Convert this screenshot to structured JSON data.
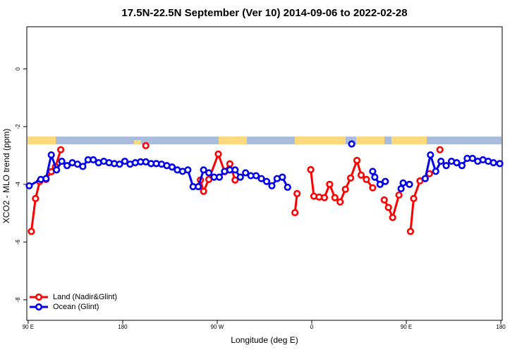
{
  "chart_data": {
    "type": "line",
    "title": "17.5N-22.5N September (Ver 10)   2014-09-06 to 2022-02-28",
    "x_label": "Longitude (deg E)",
    "y_label": "XCO2 - MLO trend (ppm)",
    "xlim": [
      88.7,
      541.3
    ],
    "ylim": [
      -8.71,
      1.46
    ],
    "xticks": [
      {
        "value": 90,
        "label": "90 E"
      },
      {
        "value": 180,
        "label": "180"
      },
      {
        "value": 270,
        "label": "90 W"
      },
      {
        "value": 360,
        "label": "0"
      },
      {
        "value": 450,
        "label": "90 E"
      },
      {
        "value": 540,
        "label": "180"
      }
    ],
    "yticks": [
      0,
      -2,
      -4,
      -6,
      -8
    ],
    "legend": "bottom-left",
    "series": [
      {
        "name": "Land (Nadir&Glint)",
        "color": "#ff0000",
        "x": [
          93,
          97,
          101,
          107,
          112,
          116,
          121,
          150,
          202,
          230,
          254,
          257,
          262,
          271,
          277,
          282,
          287,
          320,
          344,
          346,
          352,
          359,
          362,
          367,
          372,
          377,
          382,
          387,
          392,
          397,
          403,
          407,
          412,
          418,
          424,
          429,
          433,
          437,
          443,
          448,
          454,
          457,
          463,
          472,
          477,
          482
        ],
        "values": [
          -5.63,
          -4.49,
          -3.9,
          -3.83,
          -3.56,
          -3.39,
          -2.8,
          null,
          -2.66,
          null,
          -3.85,
          -4.24,
          -3.83,
          -2.95,
          -3.56,
          -3.29,
          -3.85,
          null,
          -4.98,
          -4.32,
          null,
          -3.49,
          -4.41,
          -4.44,
          -4.46,
          -4.0,
          -4.46,
          -4.61,
          -4.17,
          -3.78,
          -3.17,
          -3.68,
          -3.83,
          -4.12,
          null,
          -4.54,
          -4.8,
          -5.15,
          -4.37,
          null,
          -5.63,
          -4.49,
          -3.88,
          -3.63,
          null,
          -2.8
        ]
      },
      {
        "name": "Ocean (Glint)",
        "color": "#0000ee",
        "x": [
          91,
          102,
          107,
          112,
          117,
          122,
          127,
          132,
          137,
          142,
          147,
          152,
          157,
          162,
          167,
          172,
          177,
          182,
          187,
          192,
          197,
          202,
          207,
          212,
          217,
          222,
          227,
          232,
          237,
          242,
          247,
          252,
          257,
          262,
          267,
          272,
          277,
          282,
          287,
          292,
          297,
          302,
          307,
          312,
          317,
          322,
          327,
          332,
          337,
          390,
          398,
          405,
          418,
          420,
          425,
          430,
          435,
          445,
          447,
          453,
          456,
          468,
          473,
          478,
          483,
          488,
          493,
          498,
          503,
          508,
          513,
          518,
          523,
          528,
          533,
          539
        ],
        "values": [
          -4.05,
          -3.83,
          -3.8,
          -2.98,
          -3.5,
          -3.2,
          -3.35,
          -3.25,
          -3.3,
          -3.38,
          -3.15,
          -3.15,
          -3.25,
          -3.2,
          -3.25,
          -3.28,
          -3.3,
          -3.2,
          -3.3,
          -3.25,
          -3.22,
          -3.22,
          -3.28,
          -3.28,
          -3.3,
          -3.35,
          -3.4,
          -3.5,
          -3.55,
          -3.5,
          -4.08,
          -4.08,
          -3.5,
          -3.6,
          -3.75,
          -3.75,
          -3.55,
          -3.5,
          -3.5,
          -3.75,
          -3.6,
          -3.7,
          -3.7,
          -3.8,
          -3.9,
          -4.05,
          -3.8,
          -3.75,
          -4.1,
          null,
          -2.6,
          null,
          -3.55,
          -3.75,
          -4.0,
          -3.9,
          null,
          -4.15,
          -3.95,
          -4.0,
          null,
          -3.8,
          -2.98,
          -3.55,
          -3.2,
          -3.35,
          -3.2,
          -3.25,
          -3.35,
          -3.1,
          -3.1,
          -3.2,
          -3.15,
          -3.2,
          -3.25,
          -3.28
        ]
      }
    ]
  }
}
